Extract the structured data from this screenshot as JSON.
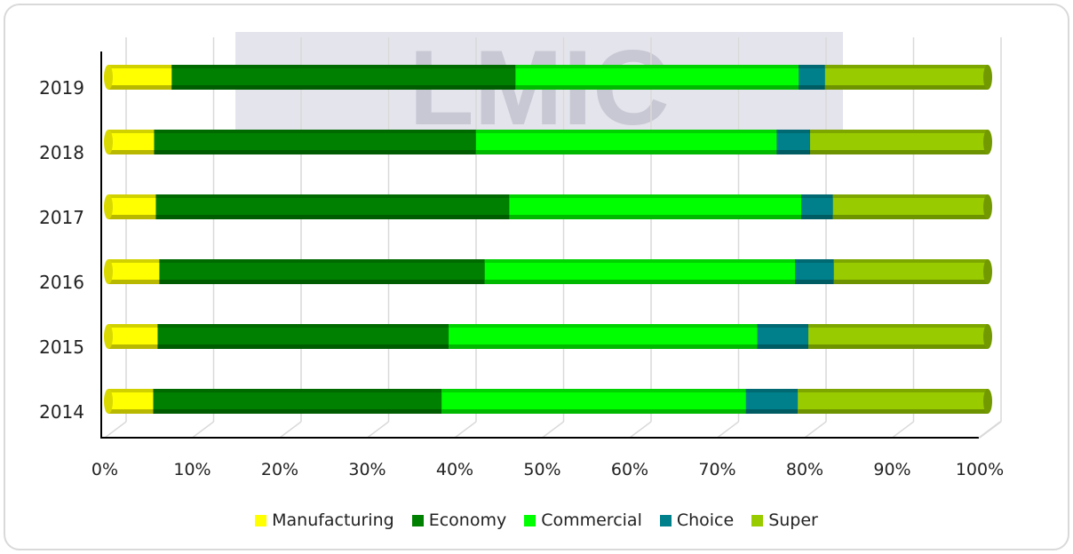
{
  "logo_text": "LMIC",
  "chart_data": {
    "type": "bar",
    "orientation": "horizontal",
    "stacked": "percent",
    "categories": [
      "2019",
      "2018",
      "2017",
      "2016",
      "2015",
      "2014"
    ],
    "x_ticks": [
      "0%",
      "10%",
      "20%",
      "30%",
      "40%",
      "50%",
      "60%",
      "70%",
      "80%",
      "90%",
      "100%"
    ],
    "xlim": [
      0,
      100
    ],
    "grid": true,
    "legend_position": "bottom",
    "series": [
      {
        "name": "Manufacturing",
        "color": "#ffff00",
        "values": [
          7.2,
          5.2,
          5.4,
          5.8,
          5.6,
          5.1
        ]
      },
      {
        "name": "Economy",
        "color": "#008000",
        "values": [
          39.1,
          36.6,
          40.2,
          37.0,
          33.1,
          32.8
        ]
      },
      {
        "name": "Commercial",
        "color": "#00ff00",
        "values": [
          32.2,
          34.2,
          33.2,
          35.3,
          35.1,
          34.6
        ]
      },
      {
        "name": "Choice",
        "color": "#00808a",
        "values": [
          3.0,
          3.8,
          3.6,
          4.4,
          5.8,
          5.9
        ]
      },
      {
        "name": "Super",
        "color": "#99cc00",
        "values": [
          18.5,
          20.2,
          17.6,
          17.5,
          20.4,
          21.6
        ]
      }
    ]
  }
}
